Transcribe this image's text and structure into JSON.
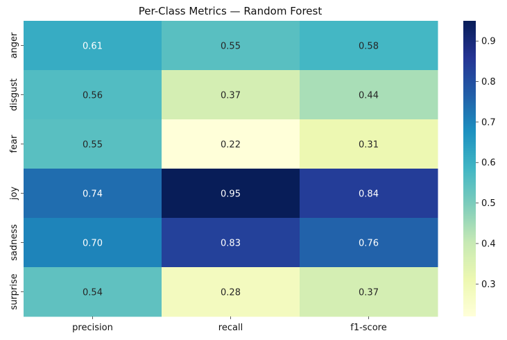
{
  "chart_data": {
    "type": "heatmap",
    "title": "Per-Class Metrics — Random Forest",
    "x_categories": [
      "precision",
      "recall",
      "f1-score"
    ],
    "y_categories": [
      "anger",
      "disgust",
      "fear",
      "joy",
      "sadness",
      "surprise"
    ],
    "values": [
      [
        0.61,
        0.55,
        0.58
      ],
      [
        0.56,
        0.37,
        0.44
      ],
      [
        0.55,
        0.22,
        0.31
      ],
      [
        0.74,
        0.95,
        0.84
      ],
      [
        0.7,
        0.83,
        0.76
      ],
      [
        0.54,
        0.28,
        0.37
      ]
    ],
    "value_labels": [
      [
        "0.61",
        "0.55",
        "0.58"
      ],
      [
        "0.56",
        "0.37",
        "0.44"
      ],
      [
        "0.55",
        "0.22",
        "0.31"
      ],
      [
        "0.74",
        "0.95",
        "0.84"
      ],
      [
        "0.70",
        "0.83",
        "0.76"
      ],
      [
        "0.54",
        "0.28",
        "0.37"
      ]
    ],
    "colormap": "YlGnBu",
    "vmin": 0.22,
    "vmax": 0.95,
    "colorbar_ticks": [
      0.3,
      0.4,
      0.5,
      0.6,
      0.7,
      0.8,
      0.9
    ],
    "colorbar_tick_labels": [
      "0.3",
      "0.4",
      "0.5",
      "0.6",
      "0.7",
      "0.8",
      "0.9"
    ]
  }
}
